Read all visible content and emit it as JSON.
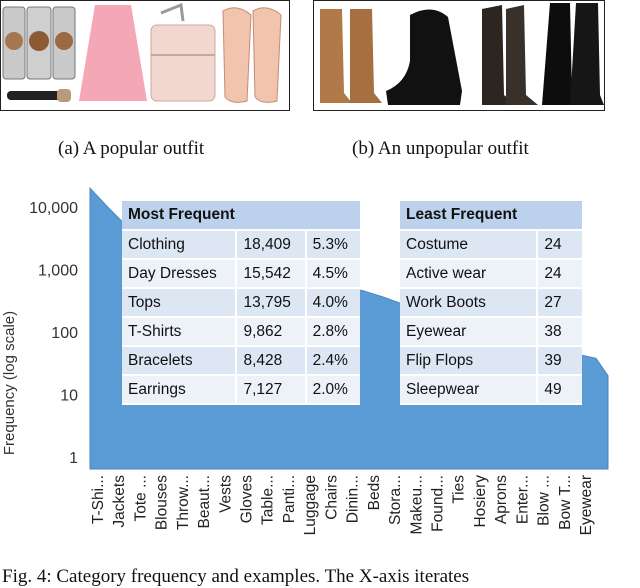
{
  "panels": {
    "popular_caption": "(a) A popular outfit",
    "unpopular_caption": "(b) An unpopular outfit"
  },
  "tables": {
    "most": {
      "header": "Most Frequent",
      "rows": [
        [
          "Clothing",
          "18,409",
          "5.3%"
        ],
        [
          "Day Dresses",
          "15,542",
          "4.5%"
        ],
        [
          "Tops",
          "13,795",
          "4.0%"
        ],
        [
          "T-Shirts",
          "9,862",
          "2.8%"
        ],
        [
          "Bracelets",
          "8,428",
          "2.4%"
        ],
        [
          "Earrings",
          "7,127",
          "2.0%"
        ]
      ]
    },
    "least": {
      "header": "Least Frequent",
      "rows": [
        [
          "Costume",
          "24"
        ],
        [
          "Active wear",
          "24"
        ],
        [
          "Work Boots",
          "27"
        ],
        [
          "Eyewear",
          "38"
        ],
        [
          "Flip Flops",
          "39"
        ],
        [
          "Sleepwear",
          "49"
        ]
      ]
    }
  },
  "chart_data": {
    "type": "area",
    "ylabel": "Frequency (log scale)",
    "xlabel": "",
    "yscale": "log",
    "ylim": [
      1,
      20000
    ],
    "y_ticks": [
      "10,000",
      "1,000",
      "100",
      "10",
      "1"
    ],
    "categories": [
      "T-Shi...",
      "Jackets",
      "Tote ...",
      "Blouses",
      "Throw...",
      "Beaut...",
      "Vests",
      "Gloves",
      "Table...",
      "Panti...",
      "Luggage",
      "Chairs",
      "Dinin...",
      "Beds",
      "Stora...",
      "Makeu...",
      "Found...",
      "Ties",
      "Hosiery",
      "Aprons",
      "Enter...",
      "Blow ...",
      "Bow T...",
      "Eyewear"
    ],
    "values": [
      9862,
      4500,
      3000,
      2400,
      1800,
      1500,
      1150,
      950,
      850,
      750,
      600,
      520,
      460,
      360,
      270,
      210,
      160,
      120,
      100,
      80,
      65,
      55,
      45,
      38
    ],
    "colors": {
      "fill": "#5b9bd5",
      "edge": "#4a86c0"
    }
  },
  "figure_caption": "Fig. 4: Category frequency and examples. The X-axis iterates"
}
